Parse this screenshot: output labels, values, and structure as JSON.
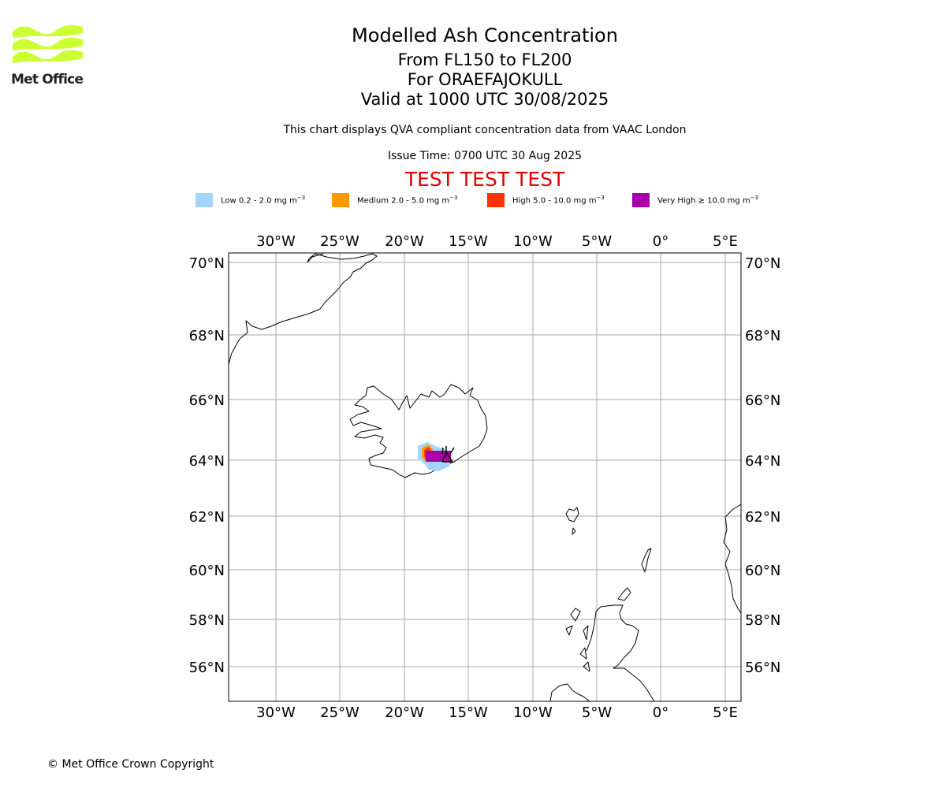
{
  "logo": {
    "text": "Met Office",
    "color": "#ccff33"
  },
  "title": {
    "line1": "Modelled Ash Concentration",
    "line2": "From FL150 to FL200",
    "line3": "For ORAEFAJOKULL",
    "line4": "Valid at 1000 UTC 30/08/2025"
  },
  "subtitle": "This chart displays QVA compliant concentration data from VAAC London",
  "issue_time": "Issue Time: 0700 UTC 30 Aug 2025",
  "test_banner": "TEST TEST TEST",
  "test_color": "#e60000",
  "legend": [
    {
      "name": "Low",
      "range": "0.2 - 2.0 mg m",
      "sup": "−3",
      "color": "#a3d5ff"
    },
    {
      "name": "Medium",
      "range": "2.0 - 5.0 mg m",
      "sup": "−3",
      "color": "#ff9900"
    },
    {
      "name": "High",
      "range": "5.0 - 10.0 mg m",
      "sup": "−3",
      "color": "#ff3300"
    },
    {
      "name": "Very High",
      "range": "≥ 10.0 mg m",
      "sup": "−3",
      "color": "#aa00aa"
    }
  ],
  "map": {
    "lon_ticks": [
      "30°W",
      "25°W",
      "20°W",
      "15°W",
      "10°W",
      "5°W",
      "0°",
      "5°E"
    ],
    "lat_ticks": [
      "70°N",
      "68°N",
      "66°N",
      "64°N",
      "62°N",
      "60°N",
      "58°N",
      "56°N"
    ],
    "gridline_color": "#aaaaaa",
    "volcano": "ORAEFAJOKULL"
  },
  "copyright": "© Met Office Crown Copyright"
}
